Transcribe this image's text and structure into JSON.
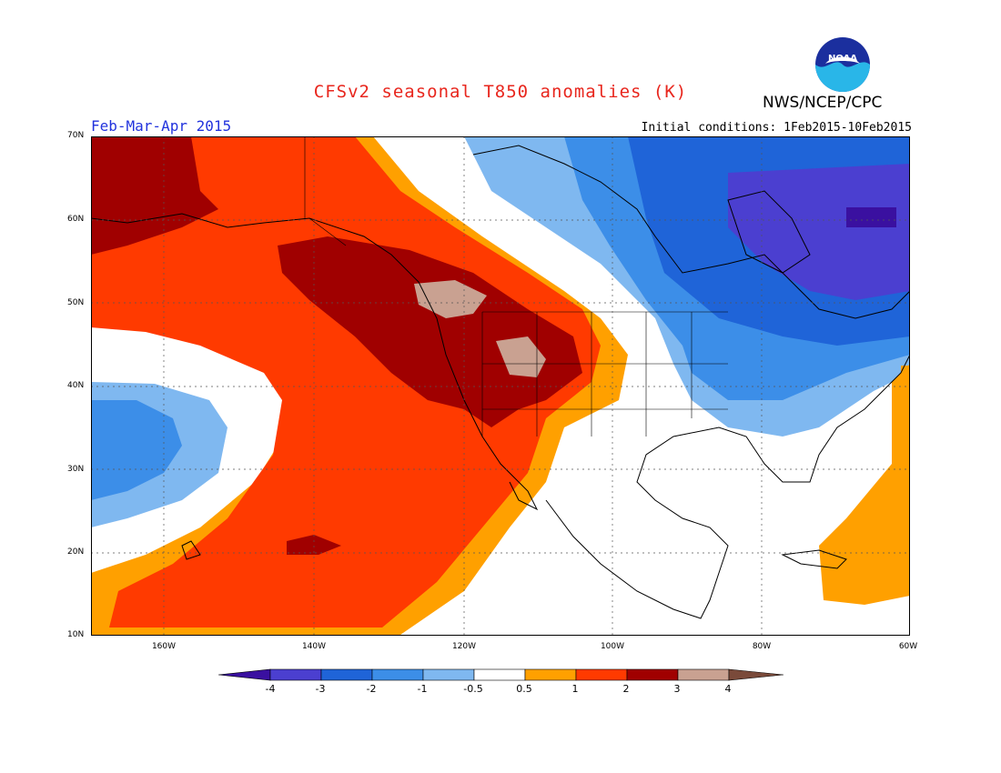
{
  "title": "CFSv2 seasonal T850 anomalies (K)",
  "season": "Feb-Mar-Apr 2015",
  "initial_conditions": "Initial conditions: 1Feb2015-10Feb2015",
  "agency": "NWS/NCEP/CPC",
  "logo_text": "NOAA",
  "lat_labels": [
    "70N",
    "60N",
    "50N",
    "40N",
    "30N",
    "20N",
    "10N"
  ],
  "lon_labels": [
    "160W",
    "140W",
    "120W",
    "100W",
    "80W",
    "60W"
  ],
  "colorbar": {
    "ticks": [
      "-4",
      "-3",
      "-2",
      "-1",
      "-0.5",
      "0.5",
      "1",
      "2",
      "3",
      "4"
    ],
    "colors": [
      "#3a10a0",
      "#4b3fd0",
      "#1f64d8",
      "#3c8ee8",
      "#7fb8f0",
      "#ffffff",
      "#ffa000",
      "#ff3a00",
      "#a00000",
      "#c9a191",
      "#7a4a3a"
    ]
  }
}
